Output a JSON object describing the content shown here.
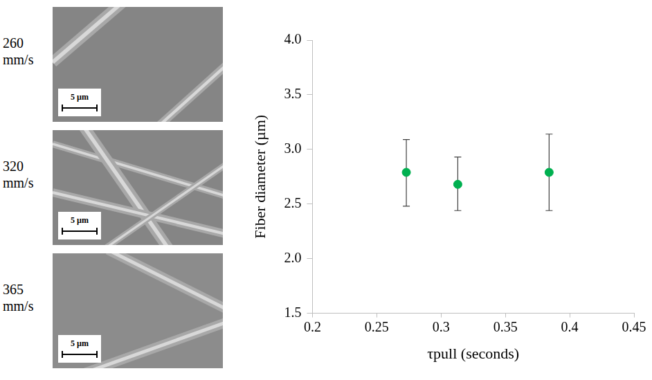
{
  "chart_data": {
    "type": "scatter",
    "x_label": "τpull (seconds)",
    "y_label": "Fiber diameter (µm)",
    "x": [
      0.273,
      0.313,
      0.384
    ],
    "values": [
      2.79,
      2.68,
      2.79
    ],
    "error_minus": [
      0.31,
      0.24,
      0.35
    ],
    "error_plus": [
      0.3,
      0.25,
      0.35
    ],
    "color": "#00b050",
    "marker": "circle",
    "xlim": [
      0.2,
      0.45
    ],
    "xticks": [
      0.2,
      0.25,
      0.3,
      0.35,
      0.4,
      0.45
    ],
    "ylim": [
      1.5,
      4.0
    ],
    "yticks": [
      1.5,
      {
        "value": 2,
        "label": "2.0"
      },
      2.5,
      {
        "value": 3,
        "label": "3.0"
      },
      3.5,
      {
        "value": 4,
        "label": "4.0"
      }
    ],
    "grid": false,
    "legend": "none",
    "panels": [
      {
        "label": "260 mm/s",
        "scale_bar": "5 µm"
      },
      {
        "label": "320 mm/s",
        "scale_bar": "5 µm"
      },
      {
        "label": "365 mm/s",
        "scale_bar": "5 µm"
      }
    ]
  }
}
